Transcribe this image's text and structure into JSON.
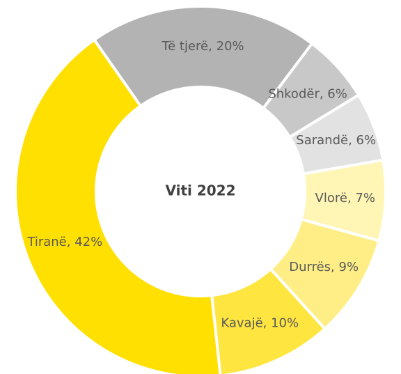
{
  "chart_data": {
    "type": "donut",
    "title": "Viti 2022",
    "values": [
      20,
      6,
      6,
      7,
      9,
      10,
      42
    ],
    "value_labels": [
      "Të tjerë, 20%",
      "Shkodër, 6%",
      "Sarandë, 6%",
      "Vlorë, 7%",
      "Durrës, 9%",
      "Kavajë, 10%",
      "Tiranë, 42%"
    ],
    "colors": [
      "#b3b3b3",
      "#c8c8c8",
      "#e2e2e2",
      "#fff6b5",
      "#ffee85",
      "#ffe540",
      "#ffe000"
    ]
  }
}
